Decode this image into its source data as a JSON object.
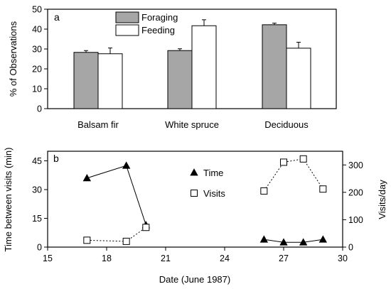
{
  "chart_data": [
    {
      "type": "bar",
      "panel_label": "a",
      "categories": [
        "Balsam fir",
        "White spruce",
        "Deciduous"
      ],
      "series": [
        {
          "name": "Foraging",
          "values": [
            28.3,
            29.2,
            42.2
          ],
          "errors": [
            0.9,
            0.9,
            0.8
          ],
          "color": "#a6a6a6"
        },
        {
          "name": "Feeding",
          "values": [
            27.6,
            41.7,
            30.4
          ],
          "errors": [
            2.9,
            3.0,
            3.0
          ],
          "color": "#ffffff"
        }
      ],
      "ylabel": "% of Observations",
      "ylim": [
        0,
        50
      ],
      "yticks": [
        0,
        10,
        20,
        30,
        40,
        50
      ],
      "legend": "top-center",
      "grid": false
    },
    {
      "type": "line",
      "panel_label": "b",
      "xlabel": "Date (June 1987)",
      "xlim": [
        15,
        30
      ],
      "xticks": [
        15,
        18,
        21,
        24,
        27,
        30
      ],
      "ylabel_left": "Time between visits (min)",
      "ylim_left": [
        0,
        50
      ],
      "yticks_left": [
        0,
        15,
        30,
        45
      ],
      "ylabel_right": "Visits/day",
      "ylim_right": [
        0,
        350
      ],
      "yticks_right": [
        0,
        100,
        200,
        300
      ],
      "legend": "center",
      "grid": false,
      "series": [
        {
          "name": "Time",
          "axis": "left",
          "marker": "filled-triangle",
          "line": "solid",
          "segments": [
            {
              "x": [
                17,
                19,
                20
              ],
              "y": [
                36,
                42.5,
                11.5
              ]
            },
            {
              "x": [
                26,
                27,
                28,
                29
              ],
              "y": [
                4,
                2.5,
                2.5,
                4
              ]
            }
          ]
        },
        {
          "name": "Visits",
          "axis": "right",
          "marker": "open-square",
          "line": "dotted",
          "segments": [
            {
              "x": [
                17,
                19,
                20
              ],
              "y": [
                25,
                21,
                72
              ]
            },
            {
              "x": [
                26,
                27,
                28,
                29
              ],
              "y": [
                205,
                310,
                322,
                212
              ]
            }
          ]
        }
      ]
    }
  ]
}
